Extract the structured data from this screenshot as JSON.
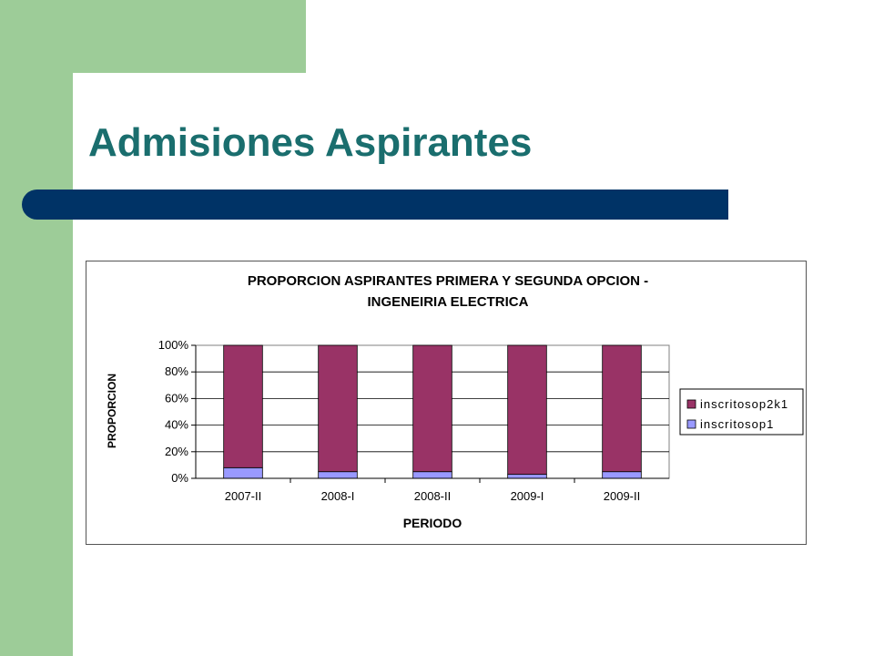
{
  "slide": {
    "title": "Admisiones Aspirantes",
    "colors": {
      "accent_green": "#9dcc98",
      "title_color": "#1a6e6e",
      "bar_color": "#003366"
    }
  },
  "chart_data": {
    "type": "bar",
    "stacked": true,
    "title_lines": [
      "PROPORCION ASPIRANTES PRIMERA Y SEGUNDA OPCION -",
      "INGENEIRIA ELECTRICA"
    ],
    "xlabel": "PERIODO",
    "ylabel": "PROPORCION",
    "categories": [
      "2007-II",
      "2008-I",
      "2008-II",
      "2009-I",
      "2009-II"
    ],
    "y_ticks": [
      "0%",
      "20%",
      "40%",
      "60%",
      "80%",
      "100%"
    ],
    "ylim": [
      0,
      100
    ],
    "grid": true,
    "legend_position": "right",
    "series": [
      {
        "name": "inscritosop1",
        "color": "#9999ff",
        "values": [
          8,
          5,
          5,
          3,
          5
        ]
      },
      {
        "name": "inscritosop2k1",
        "color": "#993366",
        "values": [
          92,
          95,
          95,
          97,
          95
        ]
      }
    ]
  }
}
